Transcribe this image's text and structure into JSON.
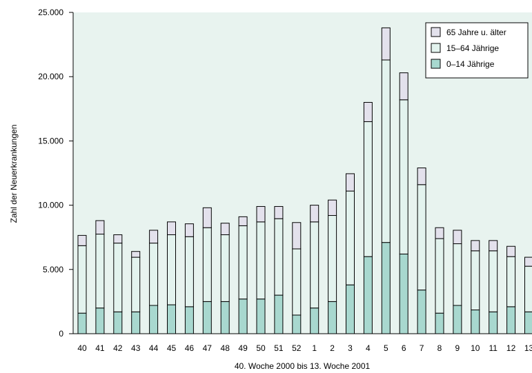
{
  "chart_data": {
    "type": "bar",
    "stacked": true,
    "title": "",
    "xlabel": "40. Woche 2000 bis 13. Woche 2001",
    "ylabel": "Zahl der Neuerkrankungen",
    "ylim": [
      0,
      25000
    ],
    "yticks": [
      0,
      5000,
      10000,
      15000,
      20000,
      25000
    ],
    "ytick_labels": [
      "0",
      "5.000",
      "10.000",
      "15.000",
      "20.000",
      "25.000"
    ],
    "grid": false,
    "legend_position": "top-right",
    "categories": [
      "40",
      "41",
      "42",
      "43",
      "44",
      "45",
      "46",
      "47",
      "48",
      "49",
      "50",
      "51",
      "52",
      "1",
      "2",
      "3",
      "4",
      "5",
      "6",
      "7",
      "8",
      "9",
      "10",
      "11",
      "12",
      "13"
    ],
    "series": [
      {
        "name": "0–14 Jährige",
        "color": "#a8d8cf",
        "values": [
          1600,
          2000,
          1700,
          1700,
          2200,
          2250,
          2100,
          2500,
          2500,
          2700,
          2700,
          3000,
          1450,
          2000,
          2500,
          3800,
          6000,
          7100,
          6200,
          3400,
          1600,
          2200,
          1850,
          1700,
          2100,
          1700
        ]
      },
      {
        "name": "15–64 Jährige",
        "color": "#e3f3ee",
        "values": [
          5250,
          5750,
          5350,
          4250,
          4850,
          5450,
          5450,
          5750,
          5200,
          5700,
          6000,
          5950,
          5150,
          6700,
          6700,
          7300,
          10500,
          14200,
          12000,
          8200,
          5800,
          4800,
          4600,
          4750,
          3900,
          3550
        ]
      },
      {
        "name": "65 Jahre u. älter",
        "color": "#e3e1ec",
        "values": [
          800,
          1050,
          650,
          450,
          1000,
          1000,
          1000,
          1550,
          900,
          700,
          1200,
          950,
          2050,
          1300,
          1200,
          1350,
          1500,
          2500,
          2100,
          1300,
          850,
          1050,
          800,
          800,
          800,
          700
        ]
      }
    ],
    "legend_order": [
      "65 Jahre u. älter",
      "15–64 Jährige",
      "0–14 Jährige"
    ]
  },
  "colors": {
    "plot_background": "#e8f3ef",
    "bar_stroke": "#000000"
  }
}
